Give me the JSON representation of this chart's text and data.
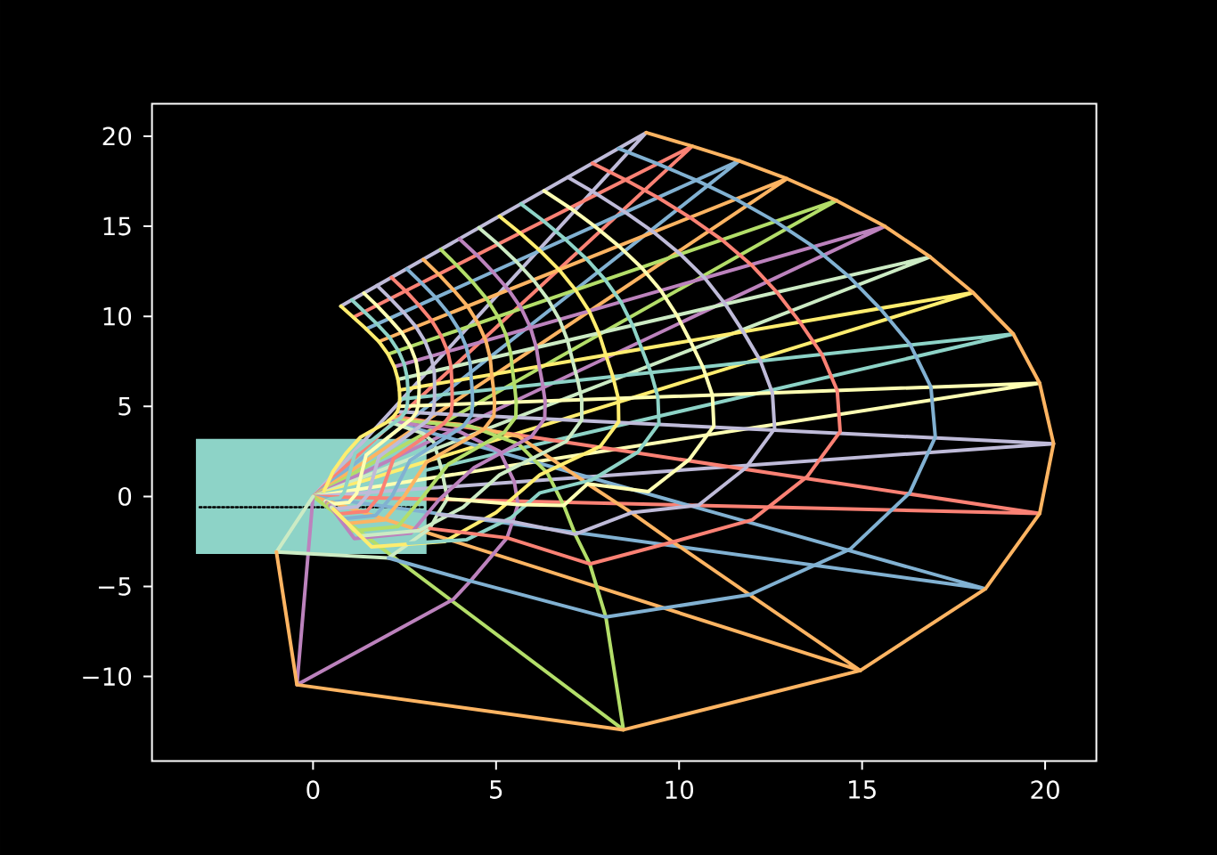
{
  "chart_data": {
    "type": "line",
    "xlim": [
      -4.4,
      21.4
    ],
    "ylim": [
      -14.7,
      21.8
    ],
    "marker": "none",
    "xticks": [
      0,
      5,
      10,
      15,
      20
    ],
    "yticks": [
      {
        "value": -10,
        "label": "−10"
      },
      {
        "value": -5,
        "label": "−5"
      },
      0,
      5,
      10,
      15,
      20
    ],
    "series": [
      {
        "type": "histogram",
        "color": "#8dd3c7",
        "bins": [
          -3.2,
          3.1
        ],
        "values": [
          6.4
        ],
        "base": [
          -3.2
        ]
      },
      {
        "type": "line",
        "color": "#000000",
        "line_style": "dotted",
        "x": [
          -3.1,
          3.0
        ],
        "values": [
          -0.6,
          -0.6
        ]
      },
      {
        "color": "#bfbbd9",
        "x": [
          0.76,
          9.1,
          0
        ],
        "values": [
          10.56,
          20.2,
          0
        ]
      },
      {
        "color": "#fa8174",
        "x": [
          1.1,
          10.36,
          0
        ],
        "values": [
          9.95,
          19.45,
          0
        ]
      },
      {
        "color": "#81b1d2",
        "x": [
          1.45,
          11.64,
          0
        ],
        "values": [
          9.3,
          18.63,
          0
        ]
      },
      {
        "color": "#fdb462",
        "x": [
          1.8,
          12.95,
          0
        ],
        "values": [
          8.6,
          17.64,
          0
        ]
      },
      {
        "color": "#b3de69",
        "x": [
          2.05,
          14.3,
          0
        ],
        "values": [
          7.9,
          16.43,
          0
        ]
      },
      {
        "color": "#bc82bd",
        "x": [
          2.22,
          15.62,
          0
        ],
        "values": [
          7.2,
          15.0,
          0
        ]
      },
      {
        "color": "#ccebc4",
        "x": [
          2.32,
          16.86,
          0
        ],
        "values": [
          6.5,
          13.3,
          0
        ]
      },
      {
        "color": "#ffed6f",
        "x": [
          2.36,
          18.03,
          0
        ],
        "values": [
          5.9,
          11.32,
          0
        ]
      },
      {
        "color": "#8dd3c7",
        "x": [
          2.37,
          19.13,
          0
        ],
        "values": [
          5.4,
          9.02,
          0
        ]
      },
      {
        "color": "#feffb3",
        "x": [
          2.35,
          19.85,
          0
        ],
        "values": [
          5.0,
          6.29,
          0
        ]
      },
      {
        "color": "#bfbbd9",
        "x": [
          2.3,
          20.23,
          0
        ],
        "values": [
          4.7,
          2.93,
          0
        ]
      },
      {
        "color": "#fa8174",
        "x": [
          2.2,
          19.85,
          0
        ],
        "values": [
          4.45,
          -0.95,
          0
        ]
      },
      {
        "color": "#81b1d2",
        "x": [
          2.05,
          18.37,
          0
        ],
        "values": [
          4.2,
          -5.13,
          0
        ]
      },
      {
        "color": "#fdb462",
        "x": [
          2.2,
          4.0,
          5.62,
          7.5,
          8.7,
          9.83,
          11.93,
          14.95,
          0
        ],
        "values": [
          4.3,
          4.0,
          3.33,
          0.7,
          -0.9,
          -2.53,
          -5.46,
          -9.67,
          0
        ]
      },
      {
        "color": "#b3de69",
        "x": [
          2.15,
          4.3,
          5.62,
          6.4,
          6.85,
          7.16,
          7.56,
          8.0,
          8.48,
          0
        ],
        "values": [
          4.25,
          3.9,
          2.9,
          1.3,
          -0.5,
          -2.1,
          -3.75,
          -6.7,
          -12.96,
          0
        ]
      },
      {
        "color": "#bc82bd",
        "x": [
          2.1,
          4.0,
          5.1,
          5.5,
          5.6,
          5.45,
          5.3,
          4.3,
          3.83,
          -0.44,
          0
        ],
        "values": [
          4.2,
          3.6,
          2.5,
          0.8,
          -0.45,
          -1.4,
          -2.3,
          -4.7,
          -5.72,
          -10.46,
          0
        ]
      },
      {
        "color": "#ccebc4",
        "x": [
          2.05,
          3.0,
          3.3,
          3.51,
          3.67,
          3.4,
          3.19,
          2.06,
          -1.0,
          0
        ],
        "values": [
          4.15,
          3.5,
          3.0,
          1.52,
          -0.13,
          -1.0,
          -1.78,
          -3.42,
          -3.09,
          0
        ]
      },
      {
        "color": "#ffed6f",
        "x": [
          0.76,
          1.1,
          1.45,
          1.8,
          2.05,
          2.22,
          2.32,
          2.36,
          2.37,
          2.35,
          2.3,
          2.2,
          2.0,
          1.3,
          0.9,
          0.55,
          0.3
        ],
        "values": [
          10.56,
          9.95,
          9.3,
          8.6,
          7.9,
          7.2,
          6.5,
          5.9,
          5.4,
          5.0,
          4.7,
          4.45,
          4.1,
          3.3,
          2.4,
          1.4,
          0.3
        ]
      },
      {
        "color": "#8dd3c7",
        "x": [
          1.06,
          1.4,
          1.75,
          2.09,
          2.33,
          2.49,
          2.57,
          2.59,
          2.59,
          2.57,
          2.52,
          2.41,
          1.15,
          0.85,
          0.73,
          0.48,
          0.33
        ],
        "values": [
          10.91,
          10.26,
          9.57,
          8.83,
          8.09,
          7.35,
          6.62,
          5.98,
          5.45,
          5.02,
          4.68,
          4.39,
          2.4,
          0.23,
          -0.08,
          -0.13,
          -0.25
        ]
      },
      {
        "color": "#feffb3",
        "x": [
          1.39,
          1.74,
          2.08,
          2.42,
          2.66,
          2.81,
          2.88,
          2.9,
          2.89,
          2.87,
          2.82,
          2.69,
          1.45,
          1.19,
          0.98,
          0.56,
          0.34
        ],
        "values": [
          11.29,
          10.61,
          9.88,
          9.1,
          8.32,
          7.54,
          6.76,
          6.09,
          5.51,
          5.04,
          4.65,
          4.3,
          2.3,
          0.17,
          -0.33,
          -0.41,
          -0.28
        ]
      },
      {
        "color": "#bfbbd9",
        "x": [
          1.75,
          2.11,
          2.47,
          2.81,
          3.06,
          3.22,
          3.31,
          3.32,
          3.32,
          3.31,
          3.27,
          3.11,
          1.8,
          1.51,
          1.22,
          0.64,
          0.36
        ],
        "values": [
          11.71,
          10.99,
          10.23,
          9.42,
          8.6,
          7.78,
          6.96,
          6.23,
          5.61,
          5.07,
          4.61,
          4.18,
          2.2,
          0.13,
          -0.57,
          -0.69,
          -0.32
        ]
      },
      {
        "color": "#fa8174",
        "x": [
          2.14,
          2.53,
          2.89,
          3.24,
          3.5,
          3.68,
          3.77,
          3.79,
          3.8,
          3.8,
          3.77,
          3.57,
          2.2,
          1.84,
          1.47,
          0.72,
          0.37
        ],
        "values": [
          12.16,
          11.41,
          10.62,
          9.77,
          8.91,
          8.05,
          7.18,
          6.39,
          5.71,
          5.11,
          4.57,
          4.04,
          2.1,
          0.08,
          -0.82,
          -0.97,
          -0.35
        ]
      },
      {
        "color": "#81b1d2",
        "x": [
          2.56,
          2.96,
          3.35,
          3.71,
          3.99,
          4.18,
          4.29,
          4.32,
          4.35,
          4.36,
          4.33,
          4.1,
          2.65,
          2.16,
          1.71,
          0.8,
          0.39
        ],
        "values": [
          12.64,
          11.86,
          11.04,
          10.15,
          9.25,
          8.34,
          7.42,
          6.58,
          5.83,
          5.15,
          4.52,
          3.89,
          2.0,
          0.03,
          -1.06,
          -1.24,
          -0.38
        ]
      },
      {
        "color": "#fdb462",
        "x": [
          3.01,
          3.43,
          3.83,
          4.22,
          4.51,
          4.72,
          4.84,
          4.88,
          4.93,
          4.96,
          4.94,
          4.66,
          3.1,
          2.48,
          1.95,
          0.88,
          0.41
        ],
        "values": [
          13.16,
          12.34,
          11.48,
          10.56,
          9.61,
          8.65,
          7.68,
          6.77,
          5.95,
          5.19,
          4.46,
          3.72,
          1.9,
          -0.02,
          -1.3,
          -1.51,
          -0.41
        ]
      },
      {
        "color": "#b3de69",
        "x": [
          3.49,
          3.92,
          4.34,
          4.74,
          5.05,
          5.27,
          5.4,
          5.45,
          5.51,
          5.55,
          5.54,
          5.22,
          3.7,
          2.97,
          2.32,
          1.0,
          0.43
        ],
        "values": [
          13.71,
          12.85,
          11.95,
          10.98,
          9.99,
          8.98,
          7.94,
          6.97,
          6.08,
          5.24,
          4.41,
          3.55,
          1.8,
          -0.09,
          -1.67,
          -1.93,
          -0.46
        ]
      },
      {
        "color": "#bc82bd",
        "x": [
          4.0,
          4.47,
          4.91,
          5.34,
          5.69,
          5.94,
          6.1,
          6.18,
          6.27,
          6.34,
          6.33,
          5.97,
          4.4,
          3.45,
          2.68,
          1.13,
          0.46
        ],
        "values": [
          14.3,
          13.41,
          12.47,
          11.47,
          10.43,
          9.37,
          8.27,
          7.22,
          6.24,
          5.29,
          4.33,
          3.33,
          1.6,
          -0.17,
          -2.03,
          -2.34,
          -0.51
        ]
      },
      {
        "color": "#ccebc4",
        "x": [
          4.53,
          5.05,
          5.55,
          6.02,
          6.42,
          6.73,
          6.95,
          7.09,
          7.23,
          7.34,
          7.34,
          6.91,
          5.1,
          4.1,
          2.9,
          1.3,
          0.5
        ],
        "values": [
          14.92,
          14.01,
          13.05,
          12.02,
          10.94,
          9.83,
          8.67,
          7.54,
          6.45,
          5.37,
          4.24,
          3.05,
          1.2,
          -0.6,
          -1.9,
          -2.2,
          -0.6
        ]
      },
      {
        "color": "#ffed6f",
        "x": [
          5.09,
          5.66,
          6.2,
          6.72,
          7.17,
          7.54,
          7.81,
          8.0,
          8.19,
          8.34,
          8.35,
          7.85,
          6.2,
          5.0,
          3.6,
          1.6,
          0.55
        ],
        "values": [
          15.56,
          14.62,
          13.65,
          12.59,
          11.47,
          10.3,
          9.07,
          7.85,
          6.66,
          5.44,
          4.15,
          2.78,
          1.2,
          -0.9,
          -2.5,
          -2.8,
          -0.7
        ]
      },
      {
        "color": "#8dd3c7",
        "x": [
          5.68,
          6.3,
          6.89,
          7.47,
          7.98,
          8.41,
          8.73,
          8.98,
          9.23,
          9.42,
          9.45,
          8.88,
          7.6,
          6.2,
          5.4,
          4.2,
          2.6
        ],
        "values": [
          16.25,
          15.29,
          14.28,
          13.19,
          12.03,
          10.8,
          9.5,
          8.19,
          6.88,
          5.52,
          4.05,
          2.47,
          0.9,
          0.2,
          -1.2,
          -2.4,
          -2.6
        ]
      },
      {
        "color": "#feffb3",
        "x": [
          6.31,
          7.02,
          7.69,
          8.35,
          8.97,
          9.5,
          9.94,
          10.3,
          10.65,
          10.91,
          10.95,
          10.28,
          9.16,
          7.5,
          6.85,
          5.6,
          3.67
        ],
        "values": [
          16.97,
          16.02,
          15.01,
          13.91,
          12.72,
          11.44,
          10.06,
          8.65,
          7.19,
          5.63,
          3.91,
          2.05,
          0.27,
          0.7,
          -0.5,
          -0.45,
          -0.13
        ]
      },
      {
        "color": "#bfbbd9",
        "x": [
          6.96,
          7.76,
          8.53,
          9.3,
          10.03,
          10.7,
          11.26,
          11.75,
          12.22,
          12.55,
          12.61,
          11.83,
          10.53,
          8.7,
          7.16,
          5.45,
          3.4
        ],
        "values": [
          17.72,
          16.78,
          15.78,
          14.68,
          13.46,
          12.13,
          10.68,
          9.15,
          7.53,
          5.75,
          3.76,
          1.6,
          -0.49,
          -0.9,
          -2.1,
          -1.4,
          -1.0
        ]
      },
      {
        "color": "#fa8174",
        "x": [
          7.63,
          8.54,
          9.42,
          10.3,
          11.17,
          11.97,
          12.67,
          13.3,
          13.9,
          14.32,
          14.4,
          13.5,
          12.0,
          9.83,
          7.56,
          5.3,
          3.19
        ],
        "values": [
          18.5,
          17.58,
          16.6,
          15.49,
          14.25,
          12.87,
          11.34,
          9.68,
          7.89,
          5.88,
          3.6,
          1.1,
          -1.3,
          -2.53,
          -3.75,
          -2.3,
          -1.78
        ]
      },
      {
        "color": "#81b1d2",
        "x": [
          8.34,
          9.41,
          10.47,
          11.55,
          12.63,
          13.67,
          14.62,
          15.49,
          16.32,
          16.88,
          17.0,
          16.3,
          14.68,
          11.93,
          8.0,
          4.3,
          2.06
        ],
        "values": [
          19.32,
          18.47,
          17.56,
          16.5,
          15.27,
          13.87,
          12.25,
          10.44,
          8.41,
          6.07,
          3.3,
          0.2,
          -2.92,
          -5.46,
          -6.7,
          -4.7,
          -3.42
        ]
      },
      {
        "color": "#fdb462",
        "x": [
          9.1,
          10.36,
          11.64,
          12.95,
          14.3,
          15.62,
          16.86,
          18.03,
          19.13,
          19.85,
          20.23,
          19.85,
          18.37,
          14.95,
          8.48,
          -0.44,
          -1.0
        ],
        "values": [
          20.2,
          19.45,
          18.63,
          17.64,
          16.43,
          15.0,
          13.3,
          11.32,
          9.02,
          6.29,
          2.93,
          -0.95,
          -5.13,
          -9.67,
          -12.96,
          -10.46,
          -3.09
        ]
      }
    ]
  }
}
